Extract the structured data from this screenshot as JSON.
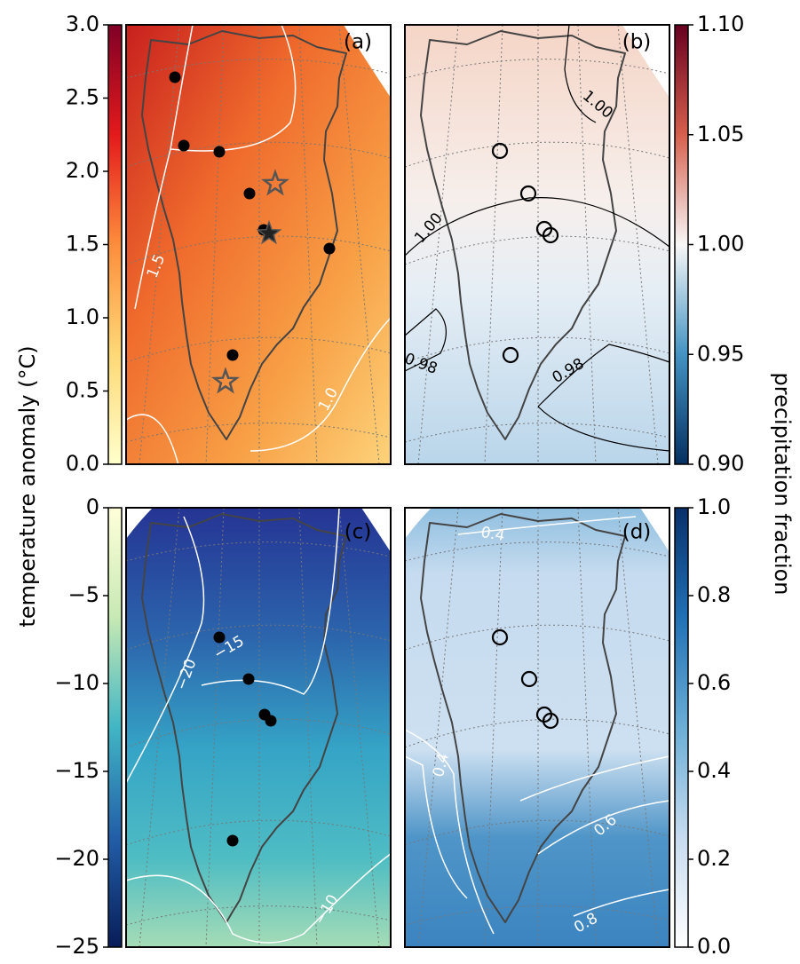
{
  "figure": {
    "left_label": "temperature anomaly (°C)",
    "right_label": "precipitation fraction",
    "panels": [
      {
        "label": "(a)",
        "contour_labels": [
          "1.5",
          "1.0"
        ]
      },
      {
        "label": "(b)",
        "contour_labels": [
          "1.00",
          "1.00",
          "0.98",
          "0.98"
        ]
      },
      {
        "label": "(c)",
        "contour_labels": [
          "−20",
          "−15",
          "−10"
        ]
      },
      {
        "label": "(d)",
        "contour_labels": [
          "0.4",
          "0.4",
          "0.6",
          "0.8"
        ]
      }
    ],
    "colorbars": [
      {
        "lim": [
          0,
          3
        ],
        "ticks": [
          {
            "value": 0,
            "label": "0.0"
          },
          0.5,
          {
            "value": 1,
            "label": "1.0"
          },
          1.5,
          {
            "value": 2,
            "label": "2.0"
          },
          2.5,
          {
            "value": 3,
            "label": "3.0"
          }
        ],
        "colors": [
          "#ffffcc",
          "#fed976",
          "#fd8d3c",
          "#e31a1c",
          "#800026"
        ]
      },
      {
        "lim": [
          -25,
          0
        ],
        "ticks": [
          {
            "value": -25,
            "label": "−25"
          },
          {
            "value": -20,
            "label": "−20"
          },
          {
            "value": -15,
            "label": "−15"
          },
          {
            "value": -10,
            "label": "−10"
          },
          {
            "value": -5,
            "label": "−5"
          },
          0
        ],
        "colors": [
          "#081d58",
          "#225ea8",
          "#41b6c4",
          "#c7e9b4",
          "#ffffd9"
        ]
      },
      {
        "lim": [
          0.9,
          1.1
        ],
        "ticks": [
          {
            "value": 0.9,
            "label": "0.90"
          },
          0.95,
          {
            "value": 1,
            "label": "1.00"
          },
          1.05,
          {
            "value": 1.1,
            "label": "1.10"
          }
        ],
        "colors": [
          "#053061",
          "#4393c3",
          "#f7f7f7",
          "#d6604d",
          "#67001f"
        ]
      },
      {
        "lim": [
          0,
          1
        ],
        "ticks": [
          {
            "value": 0,
            "label": "0.0"
          },
          0.2,
          0.4,
          0.6,
          0.8,
          {
            "value": 1,
            "label": "1.0"
          }
        ],
        "colors": [
          "#ffffff",
          "#c6dbef",
          "#6baed6",
          "#2171b5",
          "#08306b"
        ]
      }
    ]
  }
}
